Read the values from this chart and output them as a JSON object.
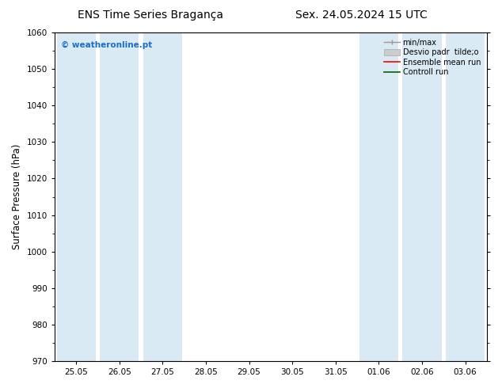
{
  "title_left": "ENS Time Series Bragança",
  "title_right": "Sex. 24.05.2024 15 UTC",
  "ylabel": "Surface Pressure (hPa)",
  "ylim": [
    970,
    1060
  ],
  "yticks": [
    970,
    980,
    990,
    1000,
    1010,
    1020,
    1030,
    1040,
    1050,
    1060
  ],
  "x_labels": [
    "25.05",
    "26.05",
    "27.05",
    "28.05",
    "29.05",
    "30.05",
    "31.05",
    "01.06",
    "02.06",
    "03.06"
  ],
  "x_values": [
    0,
    1,
    2,
    3,
    4,
    5,
    6,
    7,
    8,
    9
  ],
  "shade_color": "#daeaf5",
  "watermark_text": "© weatheronline.pt",
  "watermark_color": "#1a6fc4",
  "bg_color": "#ffffff",
  "title_fontsize": 10,
  "tick_fontsize": 7.5,
  "ylabel_fontsize": 8.5,
  "shading_ranges": [
    [
      -0.45,
      0.45
    ],
    [
      0.55,
      1.45
    ],
    [
      1.55,
      2.45
    ],
    [
      6.55,
      7.45
    ],
    [
      7.55,
      8.45
    ],
    [
      8.55,
      9.45
    ]
  ]
}
